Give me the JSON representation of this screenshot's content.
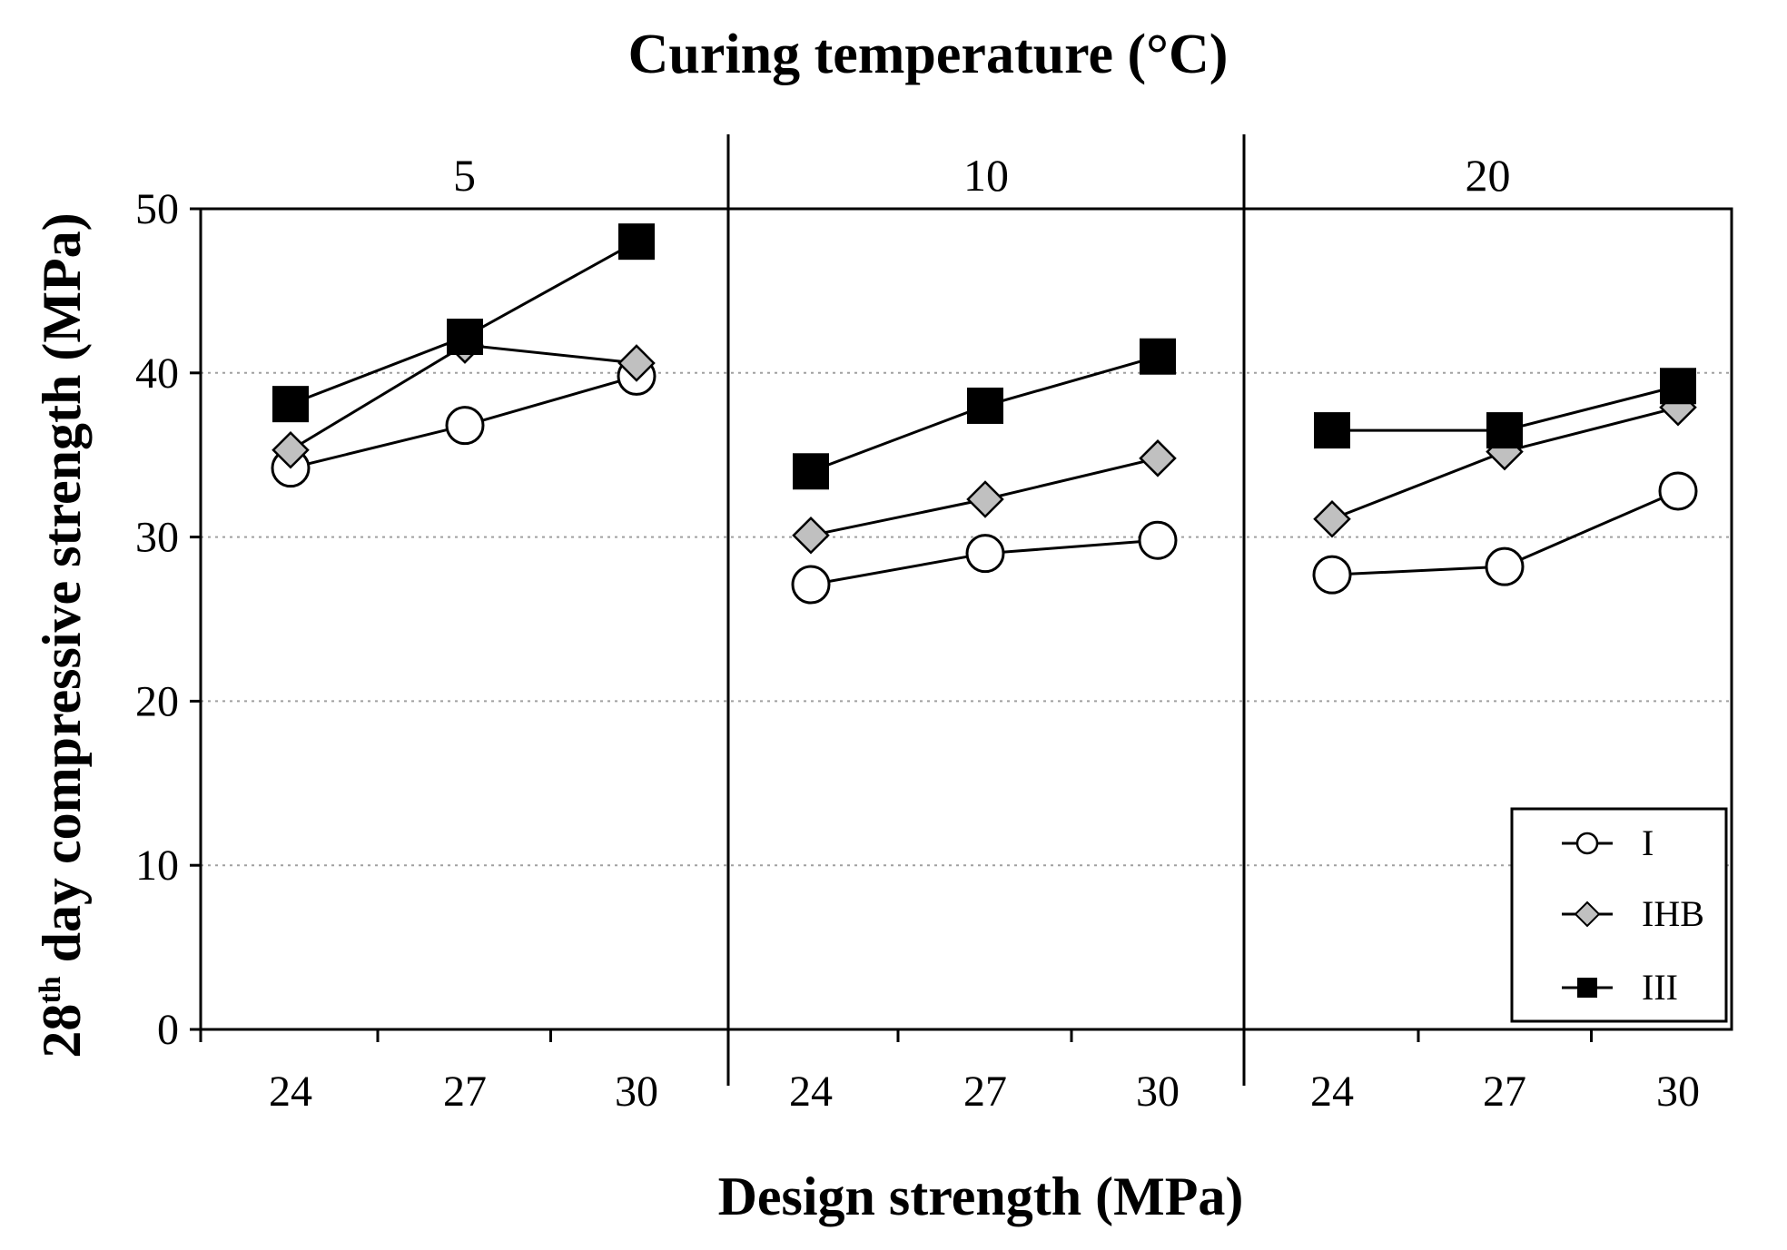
{
  "chart_data": {
    "type": "line",
    "title": "Curing temperature (°C)",
    "xlabel": "Design strength (MPa)",
    "ylabel": {
      "prefix": "28",
      "sup": "th",
      "suffix": " day compressive strength (MPa)"
    },
    "ylim": [
      0,
      50
    ],
    "yticks": [
      "0",
      "10",
      "20",
      "30",
      "40",
      "50"
    ],
    "grid": "horizontal dotted",
    "legend_position": "bottom-right",
    "panels": [
      {
        "label": "5",
        "categories": [
          "24",
          "27",
          "30"
        ],
        "series": [
          {
            "name": "I",
            "values": [
              34.2,
              36.8,
              39.8
            ]
          },
          {
            "name": "IHB",
            "values": [
              35.3,
              41.7,
              40.6
            ]
          },
          {
            "name": "III",
            "values": [
              38.1,
              42.2,
              48.0
            ]
          }
        ]
      },
      {
        "label": "10",
        "categories": [
          "24",
          "27",
          "30"
        ],
        "series": [
          {
            "name": "I",
            "values": [
              27.1,
              29.0,
              29.8
            ]
          },
          {
            "name": "IHB",
            "values": [
              30.1,
              32.3,
              34.8
            ]
          },
          {
            "name": "III",
            "values": [
              34.0,
              38.0,
              41.0
            ]
          }
        ]
      },
      {
        "label": "20",
        "categories": [
          "24",
          "27",
          "30"
        ],
        "series": [
          {
            "name": "I",
            "values": [
              27.7,
              28.2,
              32.8
            ]
          },
          {
            "name": "IHB",
            "values": [
              31.1,
              35.2,
              37.9
            ]
          },
          {
            "name": "III",
            "values": [
              36.5,
              36.5,
              39.2
            ]
          }
        ]
      }
    ],
    "legend": [
      {
        "name": "I",
        "marker": "open-circle"
      },
      {
        "name": "IHB",
        "marker": "gray-diamond"
      },
      {
        "name": "III",
        "marker": "filled-square"
      }
    ]
  },
  "colors": {
    "axis": "#000000",
    "grid": "#a0a0a0",
    "ihb_fill": "#c0c0c0",
    "iii_fill": "#000000",
    "i_fill": "#ffffff"
  }
}
